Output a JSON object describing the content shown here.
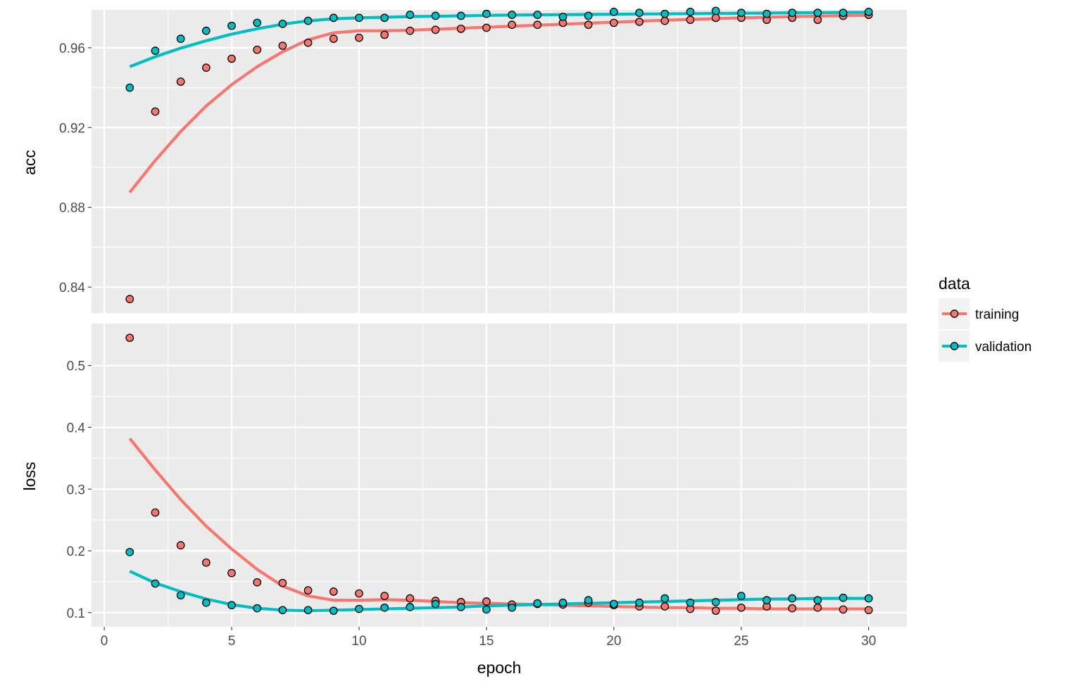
{
  "chart_data": {
    "type": "line",
    "facet_panels": [
      "acc",
      "loss"
    ],
    "xlabel": "epoch",
    "x_ticks": [
      0,
      5,
      10,
      15,
      20,
      25,
      30
    ],
    "xlim": [
      -0.5,
      31.5
    ],
    "grid": true,
    "legend": {
      "title": "data",
      "position": "right"
    },
    "series_names": [
      "training",
      "validation"
    ],
    "colors": {
      "training": "#F8766D",
      "validation": "#00BFC4",
      "panel_bg": "#EBEBEB",
      "grid": "#FFFFFF"
    },
    "epochs": [
      1,
      2,
      3,
      4,
      5,
      6,
      7,
      8,
      9,
      10,
      11,
      12,
      13,
      14,
      15,
      16,
      17,
      18,
      19,
      20,
      21,
      22,
      23,
      24,
      25,
      26,
      27,
      28,
      29,
      30
    ],
    "panels": [
      {
        "name": "acc",
        "ylabel": "acc",
        "ylim": [
          0.827,
          0.979
        ],
        "y_ticks": [
          0.84,
          0.88,
          0.92,
          0.96
        ],
        "y_tick_labels": [
          "0.84",
          "0.88",
          "0.92",
          "0.96"
        ],
        "series": [
          {
            "name": "training",
            "points": [
              0.834,
              0.928,
              0.943,
              0.95,
              0.9545,
              0.959,
              0.961,
              0.9625,
              0.9645,
              0.965,
              0.9665,
              0.9685,
              0.969,
              0.9695,
              0.97,
              0.9715,
              0.9715,
              0.9725,
              0.9715,
              0.9725,
              0.973,
              0.9735,
              0.974,
              0.975,
              0.975,
              0.974,
              0.975,
              0.974,
              0.976,
              0.9765
            ],
            "smooth": [
              0.8875,
              0.9035,
              0.918,
              0.9308,
              0.9415,
              0.9505,
              0.958,
              0.964,
              0.9675,
              0.9685,
              0.9685,
              0.9688,
              0.9693,
              0.9698,
              0.9703,
              0.9708,
              0.9713,
              0.9718,
              0.9723,
              0.9728,
              0.9733,
              0.9738,
              0.9742,
              0.9746,
              0.975,
              0.9753,
              0.9756,
              0.9759,
              0.9761,
              0.9763
            ]
          },
          {
            "name": "validation",
            "points": [
              0.94,
              0.9585,
              0.9645,
              0.9685,
              0.971,
              0.9725,
              0.972,
              0.9735,
              0.975,
              0.975,
              0.975,
              0.9765,
              0.976,
              0.976,
              0.977,
              0.9765,
              0.9765,
              0.9755,
              0.976,
              0.978,
              0.9775,
              0.977,
              0.978,
              0.9785,
              0.9775,
              0.977,
              0.9775,
              0.9775,
              0.9775,
              0.978
            ],
            "smooth": [
              0.9505,
              0.9555,
              0.9598,
              0.9635,
              0.9668,
              0.9695,
              0.9718,
              0.9735,
              0.9745,
              0.975,
              0.9753,
              0.9756,
              0.9758,
              0.976,
              0.9762,
              0.9764,
              0.9765,
              0.9766,
              0.9767,
              0.9768,
              0.9769,
              0.977,
              0.9771,
              0.9772,
              0.9773,
              0.9774,
              0.9775,
              0.9776,
              0.9777,
              0.9778
            ]
          }
        ]
      },
      {
        "name": "loss",
        "ylabel": "loss",
        "ylim": [
          0.077,
          0.568
        ],
        "y_ticks": [
          0.1,
          0.2,
          0.3,
          0.4,
          0.5
        ],
        "y_tick_labels": [
          "0.1",
          "0.2",
          "0.3",
          "0.4",
          "0.5"
        ],
        "series": [
          {
            "name": "training",
            "points": [
              0.545,
              0.262,
              0.209,
              0.181,
              0.164,
              0.149,
              0.148,
              0.136,
              0.134,
              0.131,
              0.127,
              0.123,
              0.119,
              0.117,
              0.118,
              0.113,
              0.114,
              0.113,
              0.116,
              0.112,
              0.11,
              0.11,
              0.106,
              0.103,
              0.108,
              0.11,
              0.107,
              0.108,
              0.105,
              0.104
            ],
            "smooth": [
              0.382,
              0.331,
              0.283,
              0.24,
              0.203,
              0.17,
              0.143,
              0.127,
              0.12,
              0.12,
              0.121,
              0.12,
              0.118,
              0.116,
              0.115,
              0.114,
              0.113,
              0.112,
              0.111,
              0.11,
              0.109,
              0.108,
              0.108,
              0.107,
              0.107,
              0.106,
              0.106,
              0.106,
              0.106,
              0.106
            ]
          },
          {
            "name": "validation",
            "points": [
              0.198,
              0.147,
              0.128,
              0.116,
              0.112,
              0.107,
              0.104,
              0.104,
              0.103,
              0.106,
              0.108,
              0.109,
              0.114,
              0.109,
              0.105,
              0.108,
              0.115,
              0.116,
              0.12,
              0.114,
              0.116,
              0.123,
              0.116,
              0.117,
              0.127,
              0.12,
              0.123,
              0.12,
              0.124,
              0.123
            ],
            "smooth": [
              0.167,
              0.148,
              0.134,
              0.122,
              0.113,
              0.107,
              0.104,
              0.103,
              0.104,
              0.105,
              0.106,
              0.107,
              0.108,
              0.109,
              0.111,
              0.112,
              0.113,
              0.114,
              0.115,
              0.116,
              0.117,
              0.118,
              0.119,
              0.12,
              0.121,
              0.122,
              0.122,
              0.123,
              0.123,
              0.123
            ]
          }
        ]
      }
    ]
  }
}
